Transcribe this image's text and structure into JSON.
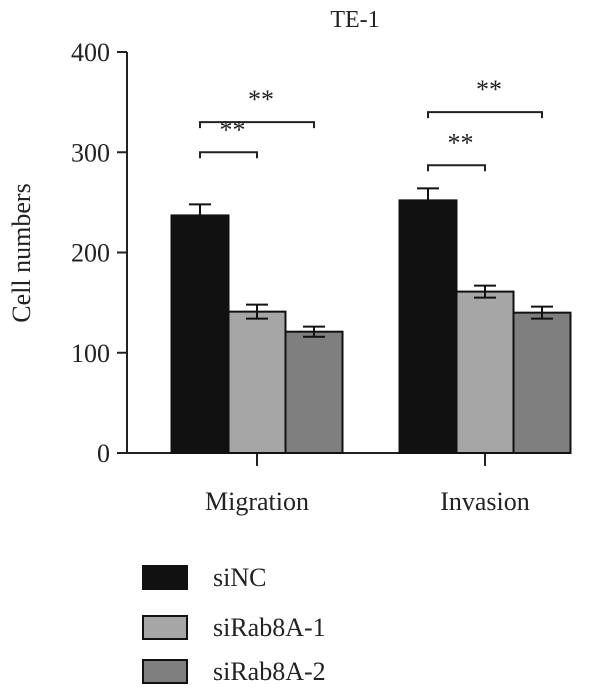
{
  "chart_data": {
    "type": "bar",
    "title": "TE-1",
    "xlabel": "",
    "ylabel": "Cell numbers",
    "ylim": [
      0,
      400
    ],
    "yticks": [
      0,
      100,
      200,
      300,
      400
    ],
    "grid": false,
    "legend_position": "bottom-left",
    "categories": [
      "Migration",
      "Invasion"
    ],
    "series": [
      {
        "name": "siNC",
        "color": "#111111",
        "values": [
          237,
          252
        ],
        "errors": [
          11,
          12
        ]
      },
      {
        "name": "siRab8A-1",
        "color": "#a6a6a6",
        "values": [
          141,
          161
        ],
        "errors": [
          7,
          6
        ]
      },
      {
        "name": "siRab8A-2",
        "color": "#7f7f7f",
        "values": [
          121,
          140
        ],
        "errors": [
          5,
          6
        ]
      }
    ],
    "annotations": [
      {
        "category": 0,
        "from_series": 0,
        "to_series": 1,
        "level": 300,
        "text": "**"
      },
      {
        "category": 0,
        "from_series": 0,
        "to_series": 2,
        "level": 330,
        "text": "**"
      },
      {
        "category": 1,
        "from_series": 0,
        "to_series": 1,
        "level": 287,
        "text": "**"
      },
      {
        "category": 1,
        "from_series": 0,
        "to_series": 2,
        "level": 340,
        "text": "**"
      }
    ]
  }
}
